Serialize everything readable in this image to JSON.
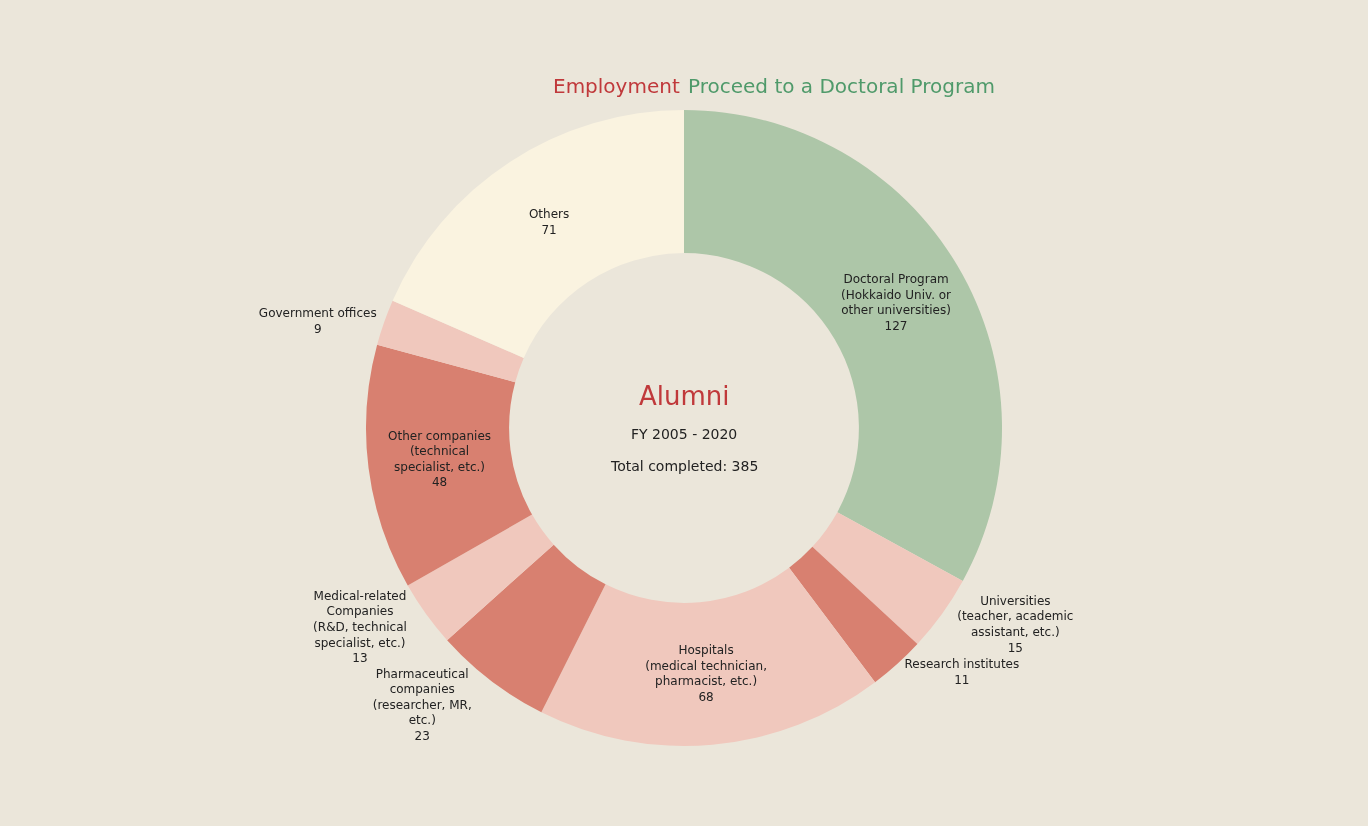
{
  "chart_data": {
    "type": "donut",
    "title": "Alumni",
    "subtitle": "FY 2005 - 2020",
    "annotations": [
      "Total completed: 385",
      "Employment",
      "Proceed to a Doctoral Program"
    ],
    "categories": [
      "Doctoral Program (Hokkaido Univ. or other universities)",
      "Universities (teacher, academic assistant, etc.)",
      "Research institutes",
      "Hospitals (medical technician, pharmacist, etc.)",
      "Pharmaceutical companies (researcher, MR, etc.)",
      "Medical-related Companies (R&D, technical specialist, etc.)",
      "Other companies (technical specialist, etc.)",
      "Government offices",
      "Others"
    ],
    "values": [
      127,
      15,
      11,
      68,
      23,
      13,
      48,
      9,
      71
    ],
    "colors": [
      "#adc6a8",
      "#f0c8bd",
      "#d88070",
      "#f0c8bd",
      "#d88070",
      "#f0c8bd",
      "#d88070",
      "#f0c8bd",
      "#faf3e0"
    ],
    "data_labels": true,
    "legend": false
  }
}
